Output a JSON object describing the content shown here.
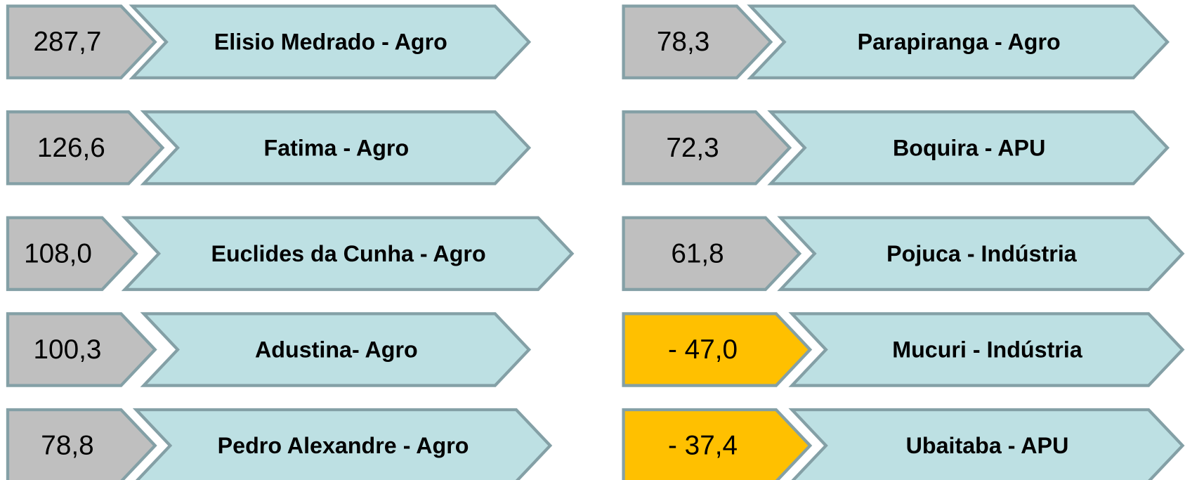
{
  "items": [
    {
      "value": "287,7",
      "label": "Elisio Medrado - Agro",
      "color": "#bfbfbf"
    },
    {
      "value": "126,6",
      "label": "Fatima - Agro",
      "color": "#bfbfbf"
    },
    {
      "value": "108,0",
      "label": "Euclides da Cunha - Agro",
      "color": "#bfbfbf"
    },
    {
      "value": "100,3",
      "label": "Adustina- Agro",
      "color": "#bfbfbf"
    },
    {
      "value": "78,8",
      "label": "Pedro Alexandre - Agro",
      "color": "#bfbfbf"
    },
    {
      "value": "78,3",
      "label": "Parapiranga - Agro",
      "color": "#bfbfbf"
    },
    {
      "value": "72,3",
      "label": "Boquira - APU",
      "color": "#bfbfbf"
    },
    {
      "value": "61,8",
      "label": "Pojuca - Indústria",
      "color": "#bfbfbf"
    },
    {
      "value": "- 47,0",
      "label": "Mucuri - Indústria",
      "color": "#ffc000"
    },
    {
      "value": "- 37,4",
      "label": "Ubaitaba - APU",
      "color": "#ffc000"
    }
  ]
}
